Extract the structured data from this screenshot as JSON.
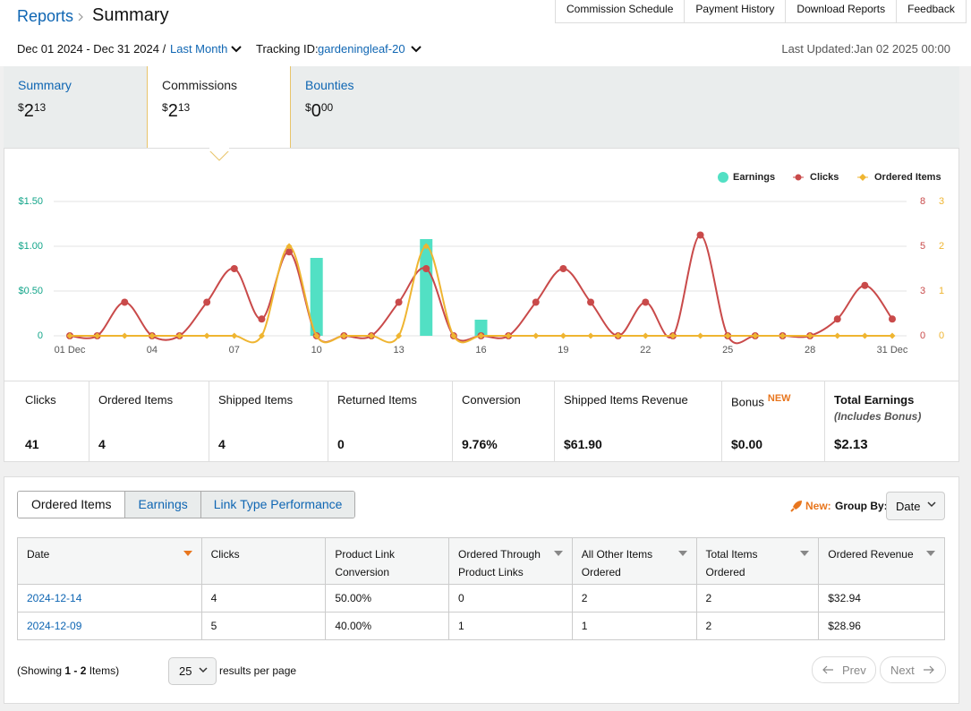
{
  "header": {
    "breadcrumb": "Reports",
    "title": "Summary",
    "nav": [
      "Commission Schedule",
      "Payment History",
      "Download Reports",
      "Feedback"
    ],
    "date_range": "Dec 01 2024 - Dec 31 2024 /",
    "period": "Last Month",
    "tracking_label": "Tracking ID:",
    "tracking_id": "gardeningleaf-20",
    "last_updated": "Last Updated:Jan 02 2025 00:00"
  },
  "tabs": [
    {
      "label": "Summary",
      "currency": "$",
      "whole": "2",
      "cents": "13"
    },
    {
      "label": "Commissions",
      "currency": "$",
      "whole": "2",
      "cents": "13"
    },
    {
      "label": "Bounties",
      "currency": "$",
      "whole": "0",
      "cents": "00"
    }
  ],
  "chart_data": {
    "type": "combo",
    "categories": [
      "01 Dec",
      null,
      null,
      "04",
      null,
      null,
      "07",
      null,
      null,
      "10",
      null,
      null,
      "13",
      null,
      null,
      "16",
      null,
      null,
      "19",
      null,
      null,
      "22",
      null,
      null,
      "25",
      null,
      null,
      "28",
      null,
      null,
      "31 Dec"
    ],
    "series": [
      {
        "name": "Earnings",
        "type": "bar",
        "color": "#52e0c4",
        "values": [
          0,
          0,
          0,
          0,
          0,
          0,
          0,
          0,
          0,
          0.87,
          0,
          0,
          0,
          1.08,
          0,
          0.18,
          0,
          0,
          0,
          0,
          0,
          0,
          0,
          0,
          0,
          0,
          0,
          0,
          0,
          0,
          0
        ]
      },
      {
        "name": "Clicks",
        "type": "line",
        "axis": "y2",
        "color": "#c94a4a",
        "values": [
          0,
          0,
          2,
          0,
          0,
          2,
          4,
          1,
          5,
          0,
          0,
          0,
          2,
          4,
          0,
          0,
          0,
          2,
          4,
          2,
          0,
          2,
          0,
          6,
          0,
          0,
          0,
          0,
          1,
          3,
          1
        ]
      },
      {
        "name": "Ordered Items",
        "type": "line",
        "axis": "y3",
        "color": "#efb531",
        "values": [
          0,
          0,
          0,
          0,
          0,
          0,
          0,
          0,
          2,
          0,
          0,
          0,
          0,
          2,
          0,
          0,
          0,
          0,
          0,
          0,
          0,
          0,
          0,
          0,
          0,
          0,
          0,
          0,
          0,
          0,
          0
        ]
      }
    ],
    "ylim": [
      0,
      1.5
    ],
    "yticks": [
      0,
      {
        "value": 0.5,
        "label": "$0.50"
      },
      {
        "value": 1,
        "label": "$1.00"
      },
      {
        "value": 1.5,
        "label": "$1.50"
      }
    ],
    "y2lim": [
      0,
      8
    ],
    "y2ticks": [
      0,
      {
        "value": 2.67,
        "label": "3"
      },
      {
        "value": 5.33,
        "label": "5"
      },
      8
    ],
    "y3lim": [
      0,
      3
    ],
    "y3ticks": [
      0,
      1,
      2,
      3
    ],
    "grid": true,
    "legend": "top-right"
  },
  "stats": [
    {
      "label": "Clicks",
      "value": "41"
    },
    {
      "label": "Ordered Items",
      "value": "4"
    },
    {
      "label": "Shipped Items",
      "value": "4"
    },
    {
      "label": "Returned Items",
      "value": "0"
    },
    {
      "label": "Conversion",
      "value": "9.76%"
    },
    {
      "label": "Shipped Items Revenue",
      "value": "$61.90"
    },
    {
      "label": "Bonus",
      "badge": "NEW",
      "value": "$0.00"
    },
    {
      "label": "Total Earnings",
      "note": "(Includes Bonus)",
      "value": "$2.13"
    }
  ],
  "report": {
    "tabs": [
      "Ordered Items",
      "Earnings",
      "Link Type Performance"
    ],
    "new_label": "New:",
    "group_by_label": "Group By:",
    "group_by": "Date",
    "columns": [
      "Date",
      "Clicks",
      "Product Link Conversion",
      "Ordered Through Product Links",
      "All Other Items Ordered",
      "Total Items Ordered",
      "Ordered Revenue"
    ],
    "rows": [
      [
        "2024-12-14",
        "4",
        "50.00%",
        "0",
        "2",
        "2",
        "$32.94"
      ],
      [
        "2024-12-09",
        "5",
        "40.00%",
        "1",
        "1",
        "2",
        "$28.96"
      ]
    ],
    "showing": [
      "(Showing ",
      "1 - 2",
      " Items)"
    ],
    "page_size": "25",
    "page_size_label": "results per page",
    "prev": "Prev",
    "next": "Next"
  }
}
